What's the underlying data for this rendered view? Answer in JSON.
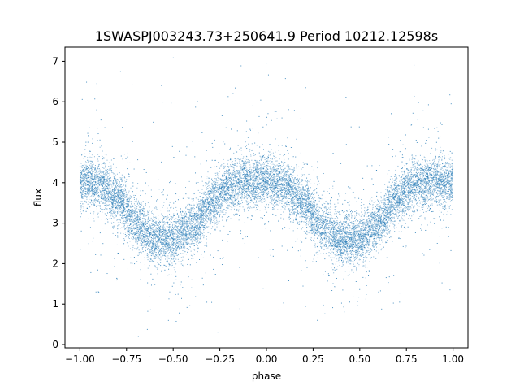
{
  "chart_data": {
    "type": "scatter",
    "title": "1SWASPJ003243.73+250641.9 Period 10212.12598s",
    "xlabel": "phase",
    "ylabel": "flux",
    "xlim": [
      -1.08,
      1.08
    ],
    "ylim": [
      -0.08,
      7.35
    ],
    "xticks": [
      {
        "value": -1.0,
        "label": "−1.00"
      },
      {
        "value": -0.75,
        "label": "−0.75"
      },
      {
        "value": -0.5,
        "label": "−0.50"
      },
      {
        "value": -0.25,
        "label": "−0.25"
      },
      {
        "value": 0.0,
        "label": "0.00"
      },
      {
        "value": 0.25,
        "label": "0.25"
      },
      {
        "value": 0.5,
        "label": "0.50"
      },
      {
        "value": 0.75,
        "label": "0.75"
      },
      {
        "value": 1.0,
        "label": "1.00"
      }
    ],
    "yticks": [
      {
        "value": 0,
        "label": "0"
      },
      {
        "value": 1,
        "label": "1"
      },
      {
        "value": 2,
        "label": "2"
      },
      {
        "value": 3,
        "label": "3"
      },
      {
        "value": 4,
        "label": "4"
      },
      {
        "value": 5,
        "label": "5"
      },
      {
        "value": 6,
        "label": "6"
      },
      {
        "value": 7,
        "label": "7"
      }
    ],
    "grid": false,
    "marker_color": "#1f77b4",
    "series": [
      {
        "x_range": [
          -1.0,
          1.0
        ],
        "trend_x": [
          -1.0,
          -0.9,
          -0.8,
          -0.7,
          -0.6,
          -0.5,
          -0.4,
          -0.3,
          -0.2,
          -0.1,
          0.0,
          0.1,
          0.2,
          0.3,
          0.4,
          0.5,
          0.6,
          0.7,
          0.8,
          0.9,
          1.0
        ],
        "trend_y": [
          4.0,
          3.95,
          3.6,
          3.0,
          2.6,
          2.6,
          2.9,
          3.5,
          3.9,
          4.05,
          4.05,
          3.9,
          3.5,
          2.9,
          2.6,
          2.6,
          3.0,
          3.6,
          3.95,
          4.05,
          4.0
        ]
      }
    ]
  }
}
